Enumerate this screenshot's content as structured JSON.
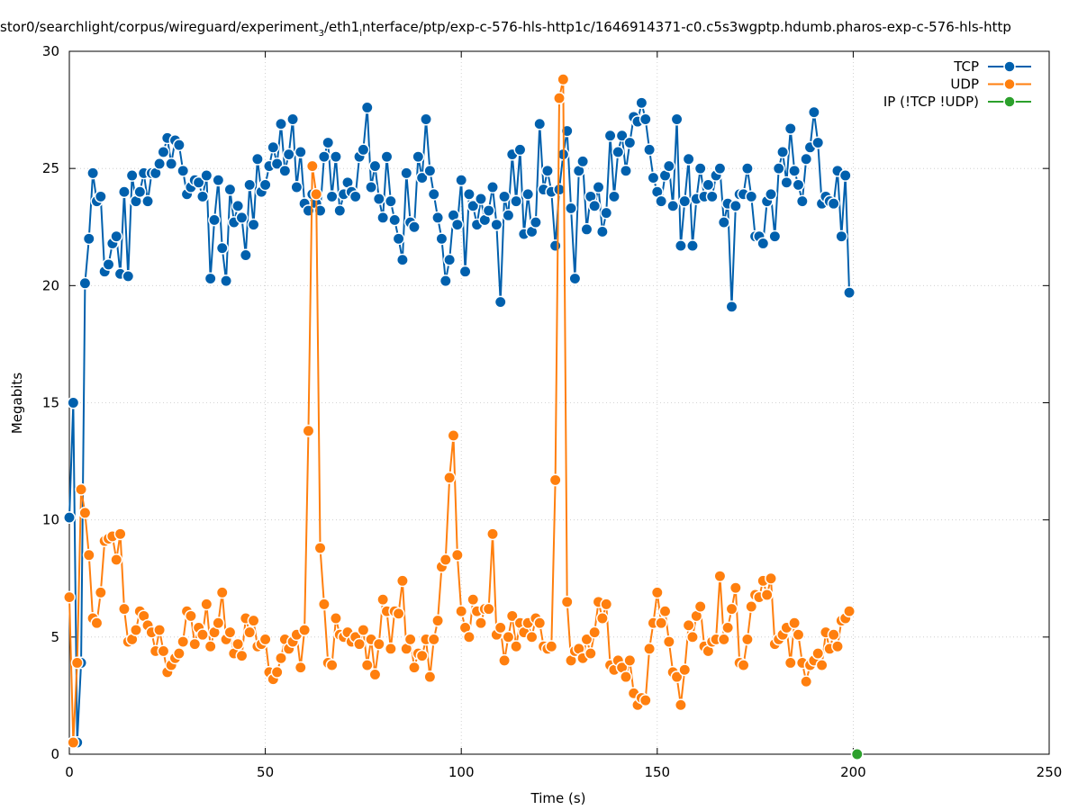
{
  "chart_data": {
    "type": "line",
    "title": "stor0/searchlight/corpus/wireguard/experiment_3/eth1_interface/ptp/exp-c-576-hls-http1c/1646914371-c0.c5s3wgptp.hdumb.pharos-exp-c-576-hls-http",
    "title_parts": {
      "a": "stor0/searchlight/corpus/wireguard/experiment",
      "sub1": "3",
      "b": "/eth1",
      "sub2": "i",
      "c": "nterface/ptp/exp-c-576-hls-http1c/1646914371-c0.c5s3wgptp.hdumb.pharos-exp-c-576-hls-http"
    },
    "xlabel": "Time (s)",
    "ylabel": "Megabits",
    "xlim": [
      0,
      250
    ],
    "ylim": [
      0,
      30
    ],
    "xticks": [
      0,
      50,
      100,
      150,
      200,
      250
    ],
    "yticks": [
      0,
      5,
      10,
      15,
      20,
      25,
      30
    ],
    "grid": true,
    "legend_position": "top-right",
    "series": [
      {
        "name": "TCP",
        "color": "#0060ad",
        "values": [
          10.1,
          15.0,
          0.5,
          3.9,
          20.1,
          22.0,
          24.8,
          23.6,
          23.8,
          20.6,
          20.9,
          21.8,
          22.1,
          20.5,
          24.0,
          20.4,
          24.7,
          23.6,
          24.0,
          24.8,
          23.6,
          24.8,
          24.8,
          25.2,
          25.7,
          26.3,
          25.2,
          26.2,
          26.0,
          24.9,
          23.9,
          24.2,
          24.5,
          24.4,
          23.8,
          24.7,
          20.3,
          22.8,
          24.5,
          21.6,
          20.2,
          24.1,
          22.7,
          23.4,
          22.9,
          21.3,
          24.3,
          22.6,
          25.4,
          24.0,
          24.3,
          25.1,
          25.9,
          25.2,
          26.9,
          24.9,
          25.6,
          27.1,
          24.2,
          25.7,
          23.5,
          23.2,
          23.9,
          23.5,
          23.2,
          25.5,
          26.1,
          23.8,
          25.5,
          23.2,
          23.9,
          24.4,
          24.0,
          23.8,
          25.5,
          25.8,
          27.6,
          24.2,
          25.1,
          23.7,
          22.9,
          25.5,
          23.6,
          22.8,
          22.0,
          21.1,
          24.8,
          22.7,
          22.5,
          25.5,
          24.6,
          27.1,
          24.9,
          23.9,
          22.9,
          22.0,
          20.2,
          21.1,
          23.0,
          22.6,
          24.5,
          20.6,
          23.9,
          23.4,
          22.6,
          23.7,
          22.8,
          23.2,
          24.2,
          22.6,
          19.3,
          23.8,
          23.0,
          25.6,
          23.6,
          25.8,
          22.2,
          23.9,
          22.3,
          22.7,
          26.9,
          24.1,
          24.9,
          24.0,
          21.7,
          24.1,
          25.6,
          26.6,
          23.3,
          20.3,
          24.9,
          25.3,
          22.4,
          23.8,
          23.4,
          24.2,
          22.3,
          23.1,
          26.4,
          23.8,
          25.7,
          26.4,
          24.9,
          26.1,
          27.2,
          27.0,
          27.8,
          27.1,
          25.8,
          24.6,
          24.0,
          23.6,
          24.7,
          25.1,
          23.4,
          27.1,
          21.7,
          23.6,
          25.4,
          21.7,
          23.7,
          25.0,
          23.8,
          24.3,
          23.8,
          24.7,
          25.0,
          22.7,
          23.5,
          19.1,
          23.4,
          23.9,
          23.9,
          25.0,
          23.8,
          22.1,
          22.1,
          21.8,
          23.6,
          23.9,
          22.1,
          25.0,
          25.7,
          24.4,
          26.7,
          24.9,
          24.3,
          23.6,
          25.4,
          25.9,
          27.4,
          26.1,
          23.5,
          23.8,
          23.6,
          23.5,
          24.9,
          22.1,
          24.7,
          19.7
        ]
      },
      {
        "name": "UDP",
        "color": "#ff7f0e",
        "values": [
          6.7,
          0.5,
          3.9,
          11.3,
          10.3,
          8.5,
          5.8,
          5.6,
          6.9,
          9.1,
          9.2,
          9.3,
          8.3,
          9.4,
          6.2,
          4.8,
          4.9,
          5.3,
          6.1,
          5.9,
          5.5,
          5.2,
          4.4,
          5.3,
          4.4,
          3.5,
          3.8,
          4.1,
          4.3,
          4.8,
          6.1,
          5.9,
          4.7,
          5.4,
          5.1,
          6.4,
          4.6,
          5.2,
          5.6,
          6.9,
          4.9,
          5.2,
          4.3,
          4.7,
          4.2,
          5.8,
          5.2,
          5.7,
          4.6,
          4.7,
          4.9,
          3.5,
          3.2,
          3.5,
          4.1,
          4.9,
          4.5,
          4.8,
          5.1,
          3.7,
          5.3,
          13.8,
          25.1,
          23.9,
          8.8,
          6.4,
          3.9,
          3.8,
          5.8,
          5.1,
          5.0,
          5.2,
          4.8,
          5.0,
          4.7,
          5.3,
          3.8,
          4.9,
          3.4,
          4.7,
          6.6,
          6.1,
          4.5,
          6.1,
          6.0,
          7.4,
          4.5,
          4.9,
          3.7,
          4.3,
          4.2,
          4.9,
          3.3,
          4.9,
          5.7,
          8.0,
          8.3,
          11.8,
          13.6,
          8.5,
          6.1,
          5.4,
          5.0,
          6.6,
          6.1,
          5.6,
          6.2,
          6.2,
          9.4,
          5.1,
          5.4,
          4.0,
          5.0,
          5.9,
          4.6,
          5.6,
          5.2,
          5.6,
          5.0,
          5.8,
          5.6,
          4.6,
          4.5,
          4.6,
          11.7,
          28.0,
          28.8,
          6.5,
          4.0,
          4.4,
          4.5,
          4.1,
          4.9,
          4.3,
          5.2,
          6.5,
          5.8,
          6.4,
          3.8,
          3.6,
          4.0,
          3.7,
          3.3,
          4.0,
          2.6,
          2.1,
          2.4,
          2.3,
          4.5,
          5.6,
          6.9,
          5.6,
          6.1,
          4.8,
          3.5,
          3.3,
          2.1,
          3.6,
          5.5,
          5.0,
          5.9,
          6.3,
          4.6,
          4.4,
          4.8,
          4.9,
          7.6,
          4.9,
          5.4,
          6.2,
          7.1,
          3.9,
          3.8,
          4.9,
          6.3,
          6.8,
          6.7,
          7.4,
          6.8,
          7.5,
          4.7,
          4.9,
          5.1,
          5.4,
          3.9,
          5.6,
          5.1,
          3.9,
          3.1,
          3.8,
          4.0,
          4.3,
          3.8,
          5.2,
          4.5,
          5.1,
          4.6,
          5.7,
          5.8,
          6.1
        ]
      },
      {
        "name": "IP (!TCP  !UDP)",
        "color": "#2ca02c",
        "values": [
          0
        ]
      }
    ],
    "ip_x": [
      201
    ]
  }
}
